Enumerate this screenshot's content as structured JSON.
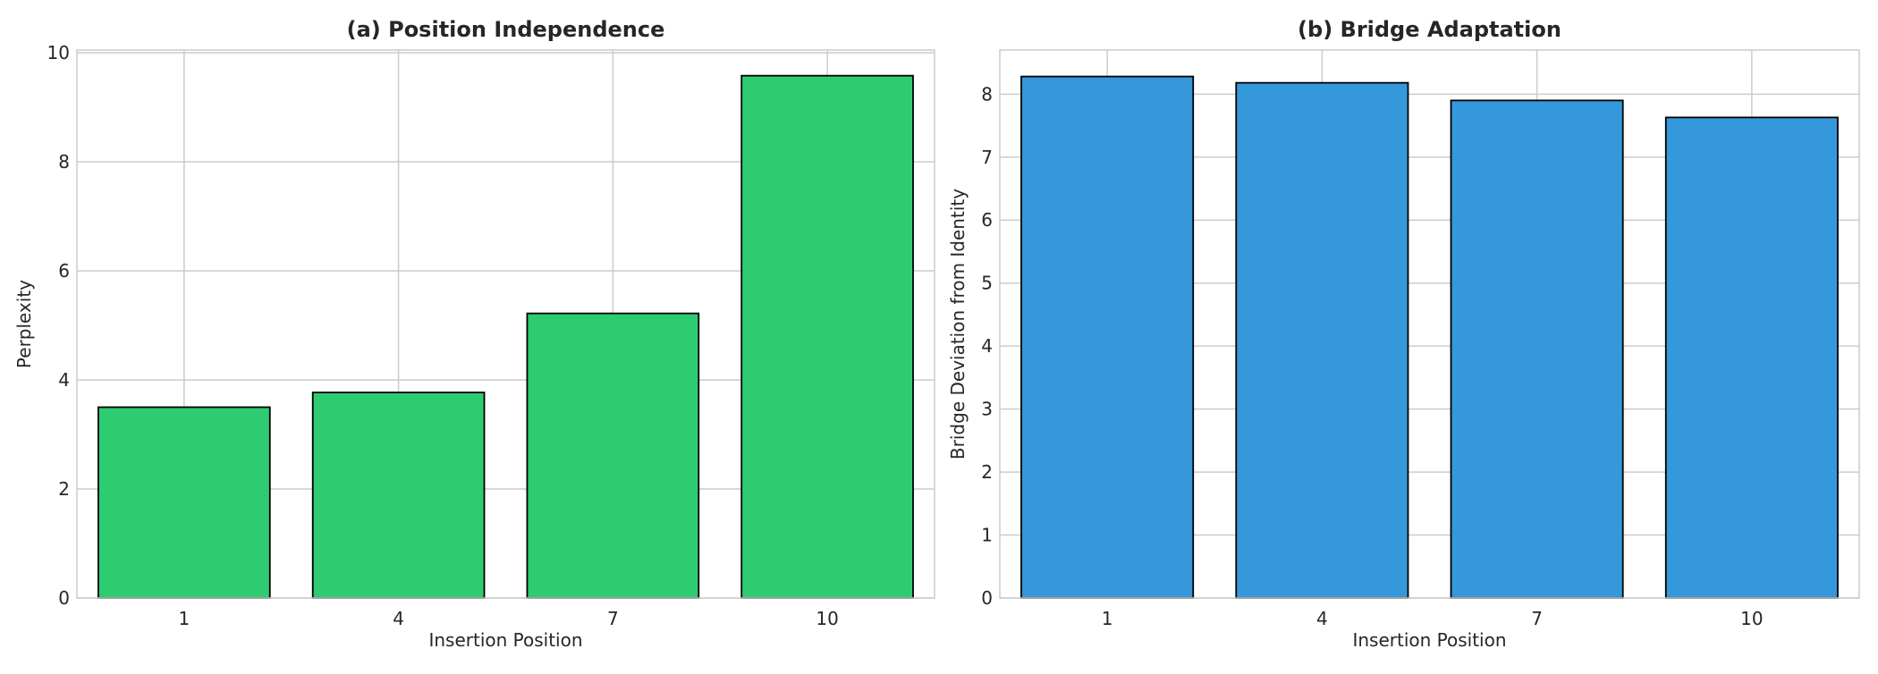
{
  "chart_data": [
    {
      "type": "bar",
      "title": "(a) Position Independence",
      "xlabel": "Insertion Position",
      "ylabel": "Perplexity",
      "categories": [
        "1",
        "4",
        "7",
        "10"
      ],
      "values": [
        3.5,
        3.77,
        5.22,
        9.58
      ],
      "ylim": [
        0,
        10.05
      ],
      "yticks": [
        0,
        2,
        4,
        6,
        8,
        10
      ],
      "ytick_labels": [
        "0",
        "2",
        "4",
        "6",
        "8",
        "10"
      ],
      "color": "#2ecc71",
      "edge_color": "#000000",
      "grid": true,
      "legend": null
    },
    {
      "type": "bar",
      "title": "(b) Bridge Adaptation",
      "xlabel": "Insertion Position",
      "ylabel": "Bridge Deviation from Identity",
      "categories": [
        "1",
        "4",
        "7",
        "10"
      ],
      "values": [
        8.28,
        8.18,
        7.9,
        7.63
      ],
      "ylim": [
        0,
        8.7
      ],
      "yticks": [
        0,
        1,
        2,
        3,
        4,
        5,
        6,
        7,
        8
      ],
      "ytick_labels": [
        "0",
        "1",
        "2",
        "3",
        "4",
        "5",
        "6",
        "7",
        "8"
      ],
      "color": "#3498db",
      "edge_color": "#000000",
      "grid": true,
      "legend": null
    }
  ]
}
